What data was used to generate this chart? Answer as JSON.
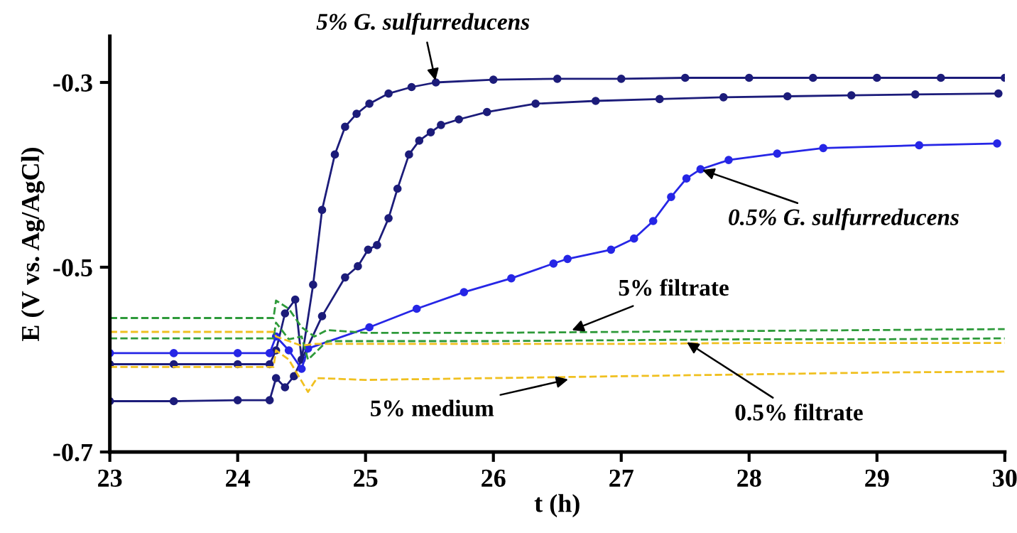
{
  "chart_data": {
    "type": "line",
    "xlabel": "t (h)",
    "ylabel": "E (V vs. Ag/AgCl)",
    "xlim": [
      23,
      30
    ],
    "ylim": [
      -0.7,
      -0.25
    ],
    "xticks": [
      23,
      24,
      25,
      26,
      27,
      28,
      29,
      30
    ],
    "yticks": [
      {
        "value": -0.7,
        "label": "-0.7"
      },
      {
        "value": -0.5,
        "label": "-0.5"
      },
      {
        "value": -0.3,
        "label": "-0.3"
      }
    ],
    "grid": false,
    "legend": false,
    "series": [
      {
        "color": "#1c1c7a",
        "marker": "circle",
        "line_style": "solid",
        "x": [
          23,
          23.5,
          24,
          24.25,
          24.3,
          24.37,
          24.45,
          24.5,
          24.59,
          24.66,
          24.76,
          24.84,
          24.93,
          25.03,
          25.18,
          25.36,
          25.55,
          26,
          26.5,
          27,
          27.5,
          28,
          28.5,
          29,
          29.5,
          30
        ],
        "values": [
          -0.605,
          -0.605,
          -0.605,
          -0.605,
          -0.59,
          -0.55,
          -0.535,
          -0.6,
          -0.519,
          -0.438,
          -0.378,
          -0.348,
          -0.334,
          -0.323,
          -0.312,
          -0.305,
          -0.3,
          -0.297,
          -0.296,
          -0.296,
          -0.295,
          -0.295,
          -0.295,
          -0.295,
          -0.295,
          -0.295
        ]
      },
      {
        "color": "#1c1c7a",
        "marker": "circle",
        "line_style": "solid",
        "x": [
          23,
          23.5,
          24,
          24.25,
          24.3,
          24.37,
          24.44,
          24.66,
          24.84,
          24.94,
          25.02,
          25.09,
          25.18,
          25.25,
          25.34,
          25.42,
          25.51,
          25.59,
          25.73,
          25.95,
          26.33,
          26.8,
          27.3,
          27.8,
          28.3,
          28.8,
          29.3,
          29.95
        ],
        "values": [
          -0.645,
          -0.645,
          -0.644,
          -0.644,
          -0.62,
          -0.63,
          -0.618,
          -0.553,
          -0.511,
          -0.499,
          -0.481,
          -0.476,
          -0.447,
          -0.415,
          -0.378,
          -0.363,
          -0.354,
          -0.346,
          -0.34,
          -0.332,
          -0.323,
          -0.32,
          -0.318,
          -0.316,
          -0.315,
          -0.314,
          -0.313,
          -0.312
        ]
      },
      {
        "color": "#2626e6",
        "marker": "circle",
        "line_style": "solid",
        "x": [
          23,
          23.5,
          24,
          24.25,
          24.3,
          24.4,
          24.5,
          24.55,
          25.03,
          25.4,
          25.77,
          26.14,
          26.47,
          26.58,
          26.92,
          27.1,
          27.25,
          27.39,
          27.51,
          27.62,
          27.84,
          28.22,
          28.58,
          29.33,
          29.94
        ],
        "values": [
          -0.593,
          -0.593,
          -0.593,
          -0.593,
          -0.575,
          -0.59,
          -0.61,
          -0.588,
          -0.565,
          -0.545,
          -0.527,
          -0.512,
          -0.496,
          -0.491,
          -0.481,
          -0.469,
          -0.45,
          -0.424,
          -0.404,
          -0.394,
          -0.384,
          -0.377,
          -0.371,
          -0.368,
          -0.366
        ]
      },
      {
        "color": "#2e9a3a",
        "marker": "none",
        "line_style": "dashed",
        "x": [
          23,
          24,
          24.28,
          24.3,
          24.4,
          24.5,
          24.6,
          24.7,
          25,
          26,
          27,
          28,
          29,
          30
        ],
        "values": [
          -0.555,
          -0.555,
          -0.555,
          -0.536,
          -0.545,
          -0.565,
          -0.575,
          -0.568,
          -0.571,
          -0.571,
          -0.57,
          -0.569,
          -0.568,
          -0.567
        ]
      },
      {
        "color": "#2e9a3a",
        "marker": "none",
        "line_style": "dashed",
        "x": [
          23,
          24,
          24.28,
          24.3,
          24.4,
          24.5,
          24.55,
          24.7,
          25,
          26,
          27,
          28,
          29,
          30
        ],
        "values": [
          -0.577,
          -0.577,
          -0.577,
          -0.56,
          -0.578,
          -0.575,
          -0.6,
          -0.58,
          -0.58,
          -0.58,
          -0.579,
          -0.578,
          -0.578,
          -0.577
        ]
      },
      {
        "color": "#f0c020",
        "marker": "none",
        "line_style": "dashed",
        "x": [
          23,
          24,
          24.28,
          24.3,
          24.4,
          24.5,
          24.6,
          25,
          26,
          27,
          28,
          29,
          30
        ],
        "values": [
          -0.57,
          -0.57,
          -0.57,
          -0.575,
          -0.58,
          -0.585,
          -0.583,
          -0.583,
          -0.583,
          -0.583,
          -0.582,
          -0.582,
          -0.582
        ]
      },
      {
        "color": "#f0c020",
        "marker": "none",
        "line_style": "dashed",
        "x": [
          23,
          24,
          24.28,
          24.3,
          24.4,
          24.55,
          24.62,
          25,
          26,
          27,
          28,
          29,
          30
        ],
        "values": [
          -0.608,
          -0.608,
          -0.608,
          -0.59,
          -0.6,
          -0.635,
          -0.62,
          -0.622,
          -0.62,
          -0.618,
          -0.616,
          -0.614,
          -0.613
        ]
      }
    ],
    "annotations": [
      {
        "text": "5% G. sulfurreducens",
        "x": 25.55,
        "y": -0.3
      },
      {
        "text": "0.5% G. sulfurreducens",
        "x": 27.62,
        "y": -0.394
      },
      {
        "text": "5% filtrate",
        "x": 26.6,
        "y": -0.569
      },
      {
        "text": "5% medium",
        "x": 26.6,
        "y": -0.621
      },
      {
        "text": "0.5% filtrate",
        "x": 27.5,
        "y": -0.58
      }
    ]
  }
}
